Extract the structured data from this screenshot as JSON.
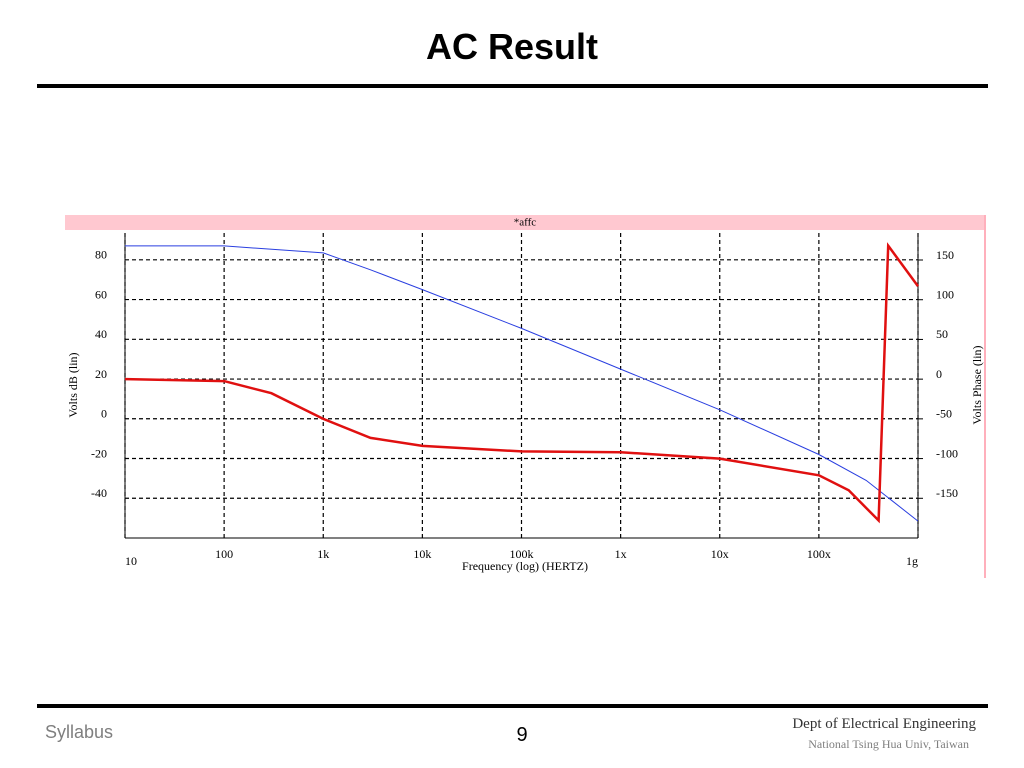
{
  "slide": {
    "title": "AC Result",
    "footer_left": "Syllabus",
    "page": "9",
    "footer_right_1": "Dept of Electrical Engineering",
    "footer_right_2": "National Tsing Hua Univ, Taiwan"
  },
  "chart_data": {
    "type": "line",
    "title": "*affc",
    "xlabel": "Frequency (log) (HERTZ)",
    "ylabel": "Volts dB (lin)",
    "y2label": "Volts Phase (lin)",
    "xscale": "log",
    "grid": true,
    "xlim": [
      10,
      1000000000
    ],
    "xticks": [
      10,
      100,
      {
        "value": 1000,
        "label": "1k"
      },
      {
        "value": 10000,
        "label": "10k"
      },
      {
        "value": 100000,
        "label": "100k"
      },
      {
        "value": 1000000,
        "label": "1x"
      },
      {
        "value": 10000000,
        "label": "10x"
      },
      {
        "value": 100000000,
        "label": "100x"
      },
      {
        "value": 1000000000,
        "label": "1g"
      }
    ],
    "ylim": [
      -60,
      93.5
    ],
    "yticks": [
      -40,
      -20,
      0,
      20,
      40,
      60,
      80
    ],
    "y2lim": [
      -200,
      184
    ],
    "y2ticks": [
      -150,
      -100,
      -50,
      0,
      50,
      100,
      150
    ],
    "series": [
      {
        "name": "Volts dB",
        "color": "#2a3fe0",
        "axis": "y",
        "x": [
          10,
          100,
          1000,
          3000,
          10000,
          100000,
          1000000,
          10000000,
          100000000,
          300000000,
          1000000000
        ],
        "values": [
          87,
          87,
          83.5,
          75,
          65,
          45.5,
          25,
          4.5,
          -18,
          -31,
          -51.5
        ]
      },
      {
        "name": "Volts Phase",
        "color": "#e01010",
        "axis": "y2",
        "x": [
          10,
          100,
          300,
          1000,
          3000,
          10000,
          100000,
          1000000,
          10000000,
          100000000,
          200000000,
          400000000,
          500000000,
          1000000000
        ],
        "values": [
          0,
          -2.5,
          -17.7,
          -50,
          -74,
          -84,
          -91,
          -92,
          -100,
          -121,
          -140,
          -178,
          168,
          117
        ]
      }
    ]
  }
}
